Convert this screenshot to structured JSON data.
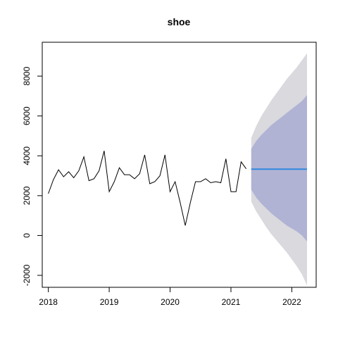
{
  "chart_data": {
    "type": "line",
    "title": "shoe",
    "xlabel": "",
    "ylabel": "",
    "xlim": [
      2017.9,
      2022.4
    ],
    "ylim": [
      -2600,
      9700
    ],
    "x_ticks": [
      2018,
      2019,
      2020,
      2021,
      2022
    ],
    "x_tick_labels": [
      "2018",
      "2019",
      "2020",
      "2021",
      "2022"
    ],
    "y_ticks": [
      -2000,
      0,
      2000,
      4000,
      6000,
      8000
    ],
    "y_tick_labels": [
      "-2000",
      "0",
      "2000",
      "4000",
      "6000",
      "8000"
    ],
    "grid": false,
    "colors": {
      "history_line": "#000000",
      "forecast_line": "#2f8ae0",
      "pi95": "#d9d9de",
      "pi80": "#b0b3d4",
      "axis": "#000000"
    },
    "history": {
      "start": [
        2018,
        1
      ],
      "values": [
        2100,
        2800,
        3300,
        2950,
        3200,
        2900,
        3250,
        3950,
        2750,
        2850,
        3250,
        4250,
        2200,
        2700,
        3400,
        3050,
        3050,
        2850,
        3100,
        4050,
        2600,
        2700,
        3000,
        4050,
        2200,
        2700,
        1650,
        500,
        1650,
        2700,
        2700,
        2850,
        2650,
        2700,
        2650,
        3850,
        2200,
        2200,
        3700,
        3350
      ]
    },
    "forecast": {
      "start": [
        2021,
        5
      ],
      "values": [
        3330,
        3330,
        3330,
        3330,
        3330,
        3330,
        3330,
        3330,
        3330,
        3330,
        3330,
        3330
      ],
      "lower80": [
        2300,
        1900,
        1600,
        1350,
        1100,
        900,
        700,
        500,
        350,
        200,
        0,
        -300
      ],
      "upper80": [
        4350,
        4750,
        5050,
        5300,
        5550,
        5750,
        5950,
        6150,
        6350,
        6550,
        6750,
        7050
      ],
      "lower95": [
        1700,
        1200,
        800,
        400,
        50,
        -250,
        -550,
        -850,
        -1200,
        -1550,
        -1950,
        -2500
      ],
      "upper95": [
        4900,
        5500,
        6000,
        6400,
        6800,
        7150,
        7500,
        7850,
        8150,
        8450,
        8800,
        9150
      ]
    }
  }
}
